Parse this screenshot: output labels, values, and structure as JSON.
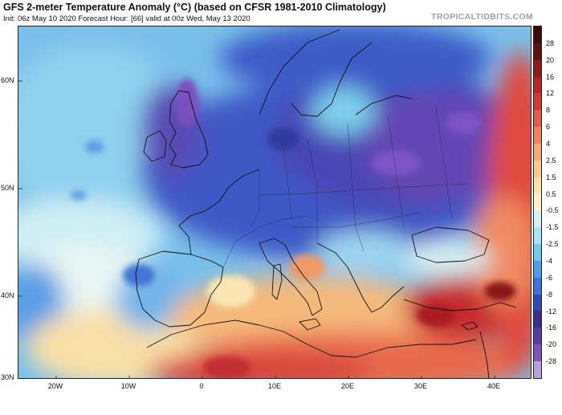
{
  "header": {
    "title": "GFS 2-meter Temperature Anomaly (°C) (based on CFSR 1981-2010 Climatology)",
    "subtitle": "Init: 06z May 10 2020   Forecast Hour: [66]   valid at 00z Wed, May 13 2020",
    "brand": "TROPICALTIDBITS.COM"
  },
  "map": {
    "lat_labels": [
      "60N",
      "50N",
      "40N",
      "30N"
    ],
    "lon_labels": [
      "20W",
      "10W",
      "0",
      "10E",
      "20E",
      "30E",
      "40E"
    ]
  },
  "colorbar": {
    "labels": [
      "28",
      "20",
      "16",
      "12",
      "8",
      "6",
      "4",
      "2.5",
      "1.5",
      "0.5",
      "-0.5",
      "-1.5",
      "-2.5",
      "-4",
      "-6",
      "-8",
      "-12",
      "-16",
      "-20",
      "-28"
    ],
    "colors": [
      "#3b0a0a",
      "#5c1212",
      "#8a1e1e",
      "#b8242a",
      "#d8343a",
      "#e85a4a",
      "#f2825f",
      "#f6a878",
      "#f9c98f",
      "#fbe3aa",
      "#fdf2cc",
      "#d6f0f6",
      "#a9e2f2",
      "#77c6ee",
      "#4f9fe8",
      "#3c73d6",
      "#3248b4",
      "#3b2f8e",
      "#5a3aa6",
      "#7c52bf",
      "#b8a0e0"
    ]
  }
}
